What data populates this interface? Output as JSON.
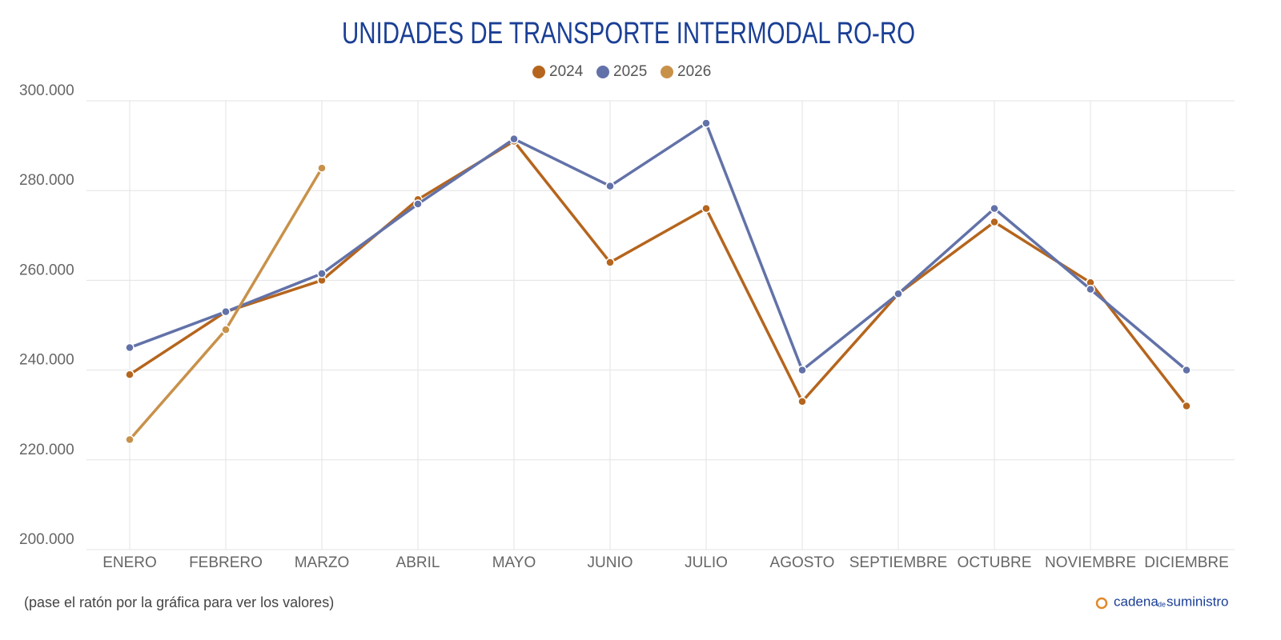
{
  "chart_data": {
    "type": "line",
    "title": "UNIDADES DE TRANSPORTE INTERMODAL RO-RO",
    "categories": [
      "ENERO",
      "FEBRERO",
      "MARZO",
      "ABRIL",
      "MAYO",
      "JUNIO",
      "JULIO",
      "AGOSTO",
      "SEPTIEMBRE",
      "OCTUBRE",
      "NOVIEMBRE",
      "DICIEMBRE"
    ],
    "series": [
      {
        "name": "2024",
        "color": "#b5651d",
        "values": [
          239000,
          253000,
          260000,
          278000,
          291000,
          264000,
          276000,
          233000,
          257000,
          273000,
          259500,
          232000
        ]
      },
      {
        "name": "2025",
        "color": "#6272a8",
        "values": [
          245000,
          253000,
          261500,
          277000,
          291500,
          281000,
          295000,
          240000,
          257000,
          276000,
          258000,
          240000
        ]
      },
      {
        "name": "2026",
        "color": "#c8914a",
        "values": [
          224500,
          249000,
          285000,
          null,
          null,
          null,
          null,
          null,
          null,
          null,
          null,
          null
        ]
      }
    ],
    "ylim": [
      200000,
      300000
    ],
    "yticks": [
      {
        "value": 200000,
        "label": "200.000"
      },
      {
        "value": 220000,
        "label": "220.000"
      },
      {
        "value": 240000,
        "label": "240.000"
      },
      {
        "value": 260000,
        "label": "260.000"
      },
      {
        "value": 280000,
        "label": "280.000"
      },
      {
        "value": 300000,
        "label": "300.000"
      }
    ],
    "grid": true,
    "legend": "top",
    "footnote": "(pase el ratón por la gráfica para ver los valores)",
    "brand": [
      "cadena",
      "de",
      "suministro"
    ]
  }
}
